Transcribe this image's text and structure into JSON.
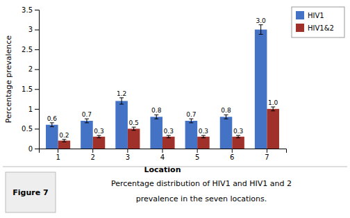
{
  "chart_data": {
    "type": "bar",
    "xlabel": "Location",
    "ylabel": "Percentage prevalence",
    "categories": [
      "1",
      "2",
      "3",
      "4",
      "5",
      "6",
      "7"
    ],
    "series": [
      {
        "name": "HIV1",
        "color": "#4472C4",
        "values": [
          0.6,
          0.7,
          1.2,
          0.8,
          0.7,
          0.8,
          3.0
        ],
        "value_labels": [
          "0.6",
          "0.7",
          "1.2",
          "0.8",
          "0.7",
          "0.8",
          "3.0"
        ],
        "errors": [
          0.05,
          0.05,
          0.08,
          0.05,
          0.05,
          0.05,
          0.12
        ]
      },
      {
        "name": "HIV1&2",
        "color": "#A0302A",
        "values": [
          0.2,
          0.3,
          0.5,
          0.3,
          0.3,
          0.3,
          1.0
        ],
        "value_labels": [
          "0.2",
          "0.3",
          "0.5",
          "0.3",
          "0.3",
          "0.3",
          "1.0"
        ],
        "errors": [
          0.03,
          0.03,
          0.04,
          0.03,
          0.03,
          0.03,
          0.05
        ]
      }
    ],
    "ylim": [
      0,
      3.5
    ],
    "yticks": [
      0,
      0.5,
      1,
      1.5,
      2,
      2.5,
      3,
      3.5
    ],
    "data_labels": true,
    "legend": "upper right",
    "annotations": [
      "Figure 7",
      "Percentage distribution of HIV1 and HIV1 and 2",
      "prevalence in the seven locations."
    ]
  }
}
